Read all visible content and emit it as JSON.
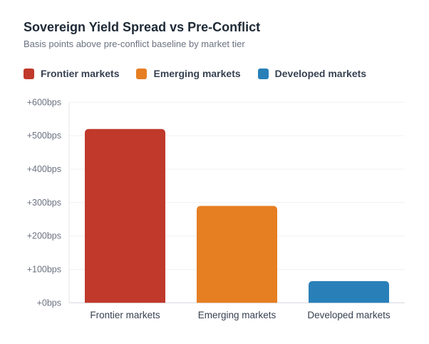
{
  "chart_data": {
    "type": "bar",
    "title": "Sovereign Yield Spread vs Pre-Conflict",
    "subtitle": "Basis points above pre-conflict baseline by market tier",
    "categories": [
      "Frontier markets",
      "Emerging markets",
      "Developed markets"
    ],
    "values": [
      520,
      290,
      65
    ],
    "colors": [
      "#c0392b",
      "#e67e22",
      "#2980b9"
    ],
    "legend": [
      "Frontier markets",
      "Emerging markets",
      "Developed markets"
    ],
    "legend_position": "top-left",
    "ylim": [
      0,
      600
    ],
    "yticks": [
      0,
      100,
      200,
      300,
      400,
      500,
      600
    ],
    "ytick_labels": [
      "+0bps",
      "+100bps",
      "+200bps",
      "+300bps",
      "+400bps",
      "+500bps",
      "+600bps"
    ],
    "grid": true
  }
}
